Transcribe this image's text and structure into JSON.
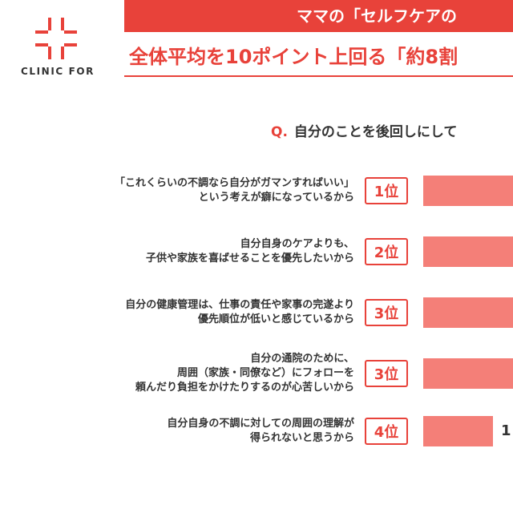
{
  "brand": {
    "logo_text": "CLINIC FOR",
    "accent": "#e8423a",
    "bar_color": "#f47f78"
  },
  "header": {
    "banner": "ママの「セルフケアの",
    "subtitle": "全体平均を10ポイント上回る「約8割"
  },
  "question": {
    "mark": "Q.",
    "text": "自分のことを後回しにして"
  },
  "chart_data": {
    "type": "bar",
    "orientation": "horizontal",
    "categories": [
      "「これくらいの不調なら自分がガマンすればいい」\nという考えが癖になっているから",
      "自分自身のケアよりも、\n子供や家族を喜ばせることを優先したいから",
      "自分の健康管理は、仕事の責任や家事の完遂より\n優先順位が低いと感じているから",
      "自分の通院のために、\n周囲（家族・同僚など）にフォローを\n頼んだり負担をかけたりするのが心苦しいから",
      "自分自身の不調に対しての周囲の理解が\n得られないと思うから"
    ],
    "ranks": [
      "1位",
      "2位",
      "3位",
      "3位",
      "4位"
    ],
    "relative_values": [
      1.0,
      1.0,
      1.0,
      1.0,
      0.78
    ],
    "value_labels": [
      "",
      "",
      "",
      "",
      "1"
    ],
    "title": "",
    "xlabel": "",
    "ylabel": "",
    "grid": false,
    "legend": "none"
  }
}
